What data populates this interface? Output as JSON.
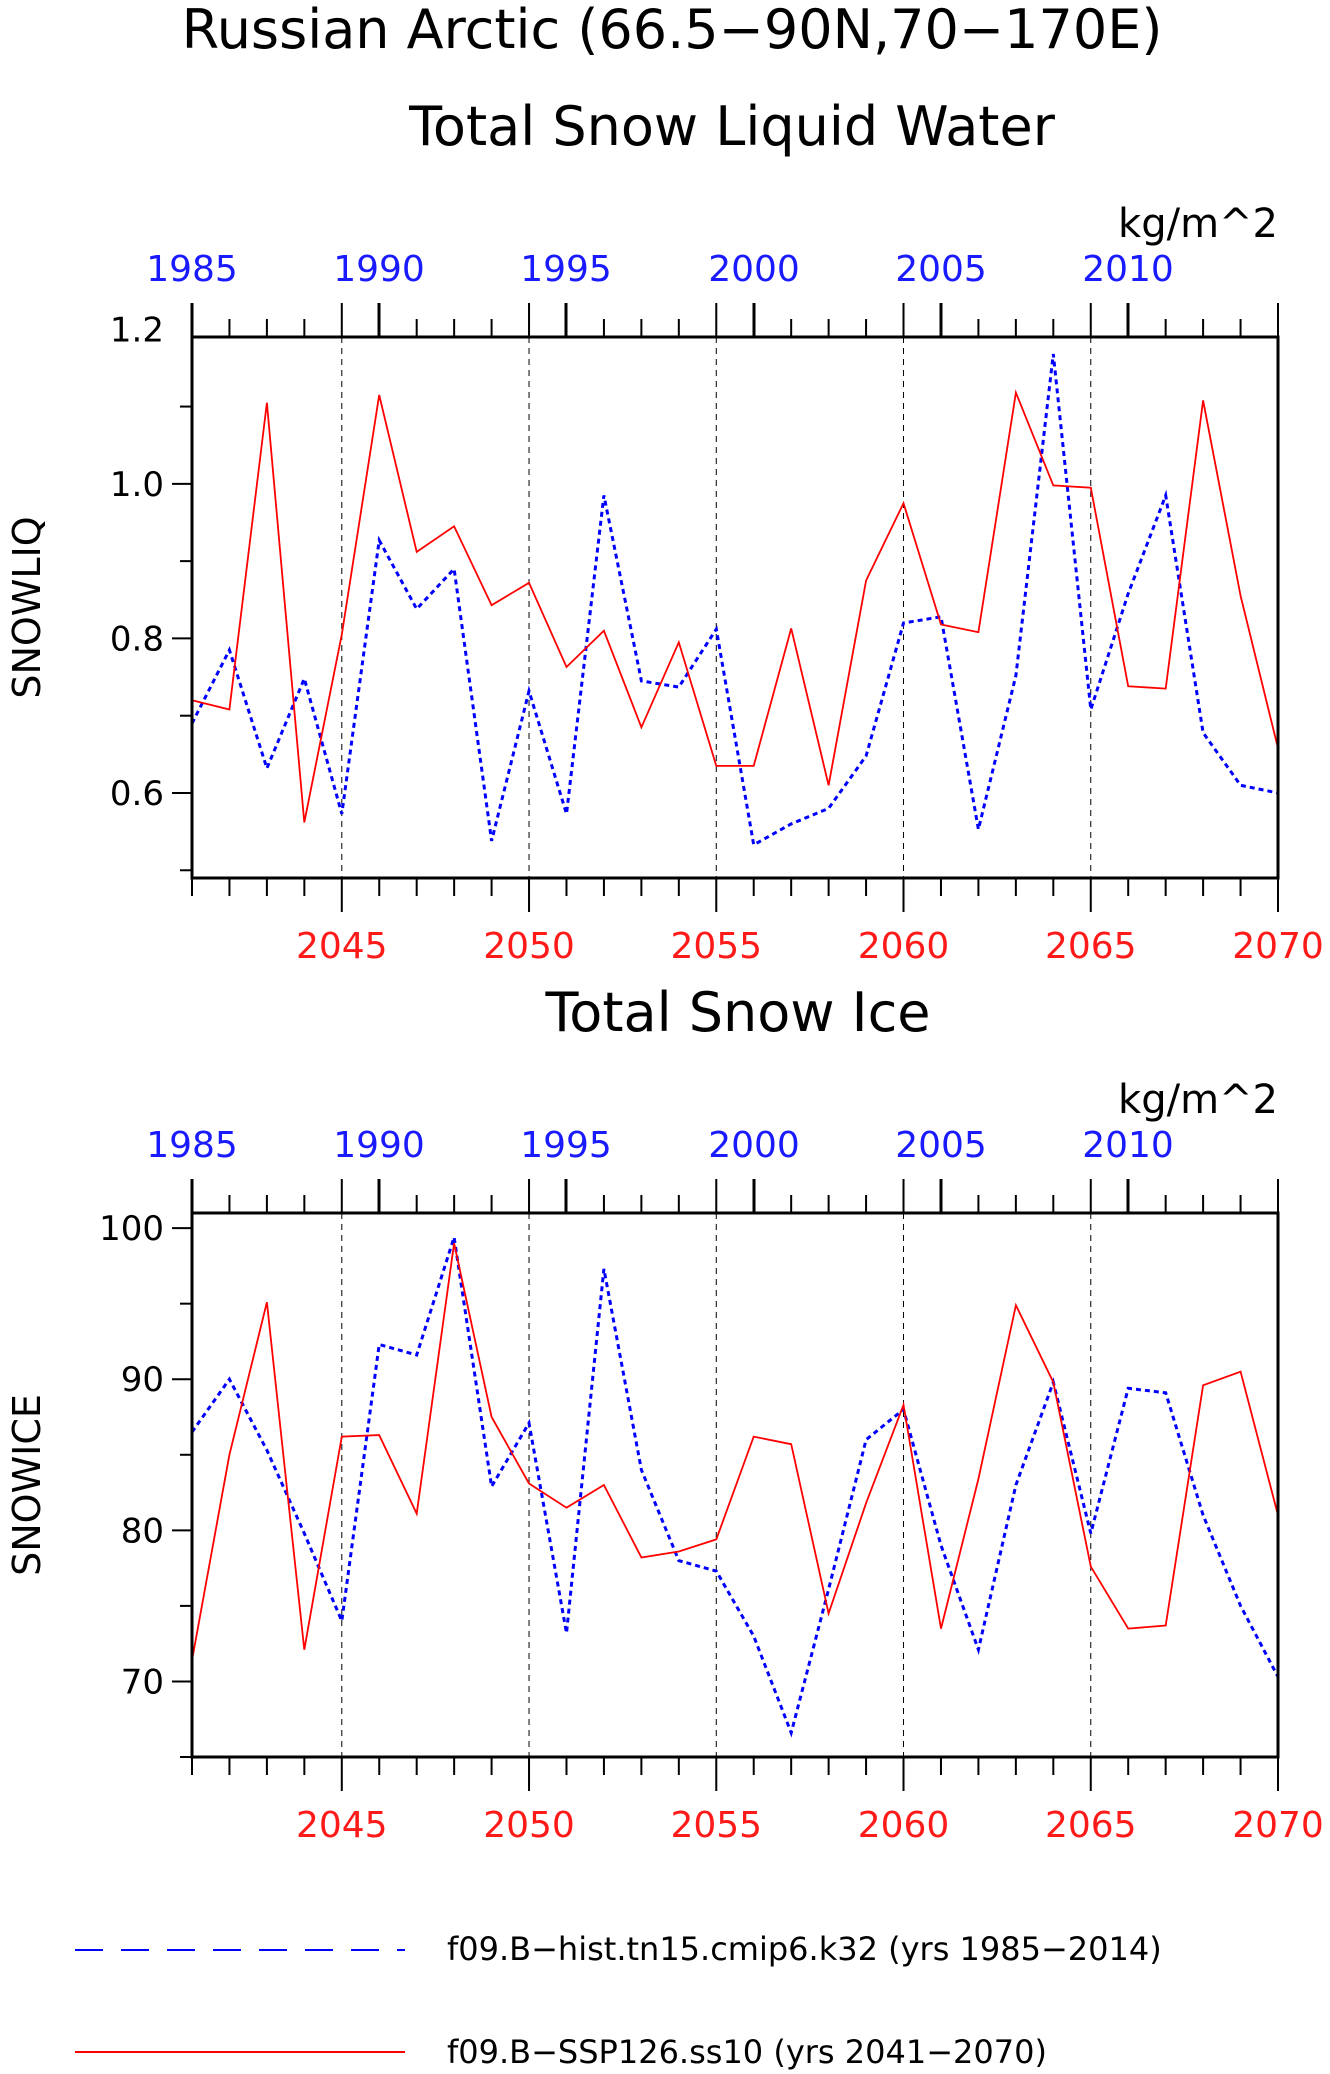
{
  "titles": {
    "main_line1": "Russian Arctic (66.5−90N,70−170E)",
    "main_line2": "Total Snow Liquid Water",
    "panel2": "Total Snow Ice"
  },
  "legend": {
    "hist_label": "f09.B−hist.tn15.cmip6.k32 (yrs 1985−2014)",
    "ssp_label": "f09.B−SSP126.ss10 (yrs 2041−2070)"
  },
  "colors": {
    "hist": "#0000ff",
    "ssp": "#ff0000",
    "top_axis": "#1a1aff",
    "bottom_axis": "#ff1a1a"
  },
  "chart_data": [
    {
      "type": "line",
      "units": "kg/m^2",
      "ylabel": "SNOWLIQ",
      "ylim": [
        0.49,
        1.19
      ],
      "yticks": [
        0.6,
        0.8,
        1.0,
        1.2
      ],
      "ytick_labels": [
        "0.6",
        "0.8",
        "1.0",
        "1.2"
      ],
      "x_bottom_ticks": [
        2045,
        2050,
        2055,
        2060,
        2065,
        2070
      ],
      "x_top_tick_labels": [
        "1985",
        "1990",
        "1995",
        "2000",
        "2005",
        "2010"
      ],
      "x_bottom_range": [
        2041,
        2070
      ],
      "grid": "dashed vertical lines at 2045, 2050, 2055, 2060, 2065",
      "series": [
        {
          "name": "f09.B−hist.tn15.cmip6.k32 (yrs 1985−2014)",
          "style": "dashed",
          "years": [
            1985,
            1986,
            1987,
            1988,
            1989,
            1990,
            1991,
            1992,
            1993,
            1994,
            1995,
            1996,
            1997,
            1998,
            1999,
            2000,
            2001,
            2002,
            2003,
            2004,
            2005,
            2006,
            2007,
            2008,
            2009,
            2010,
            2011,
            2012,
            2013,
            2014
          ],
          "values": [
            0.69,
            0.785,
            0.632,
            0.748,
            0.573,
            0.927,
            0.838,
            0.89,
            0.538,
            0.732,
            0.573,
            0.985,
            0.745,
            0.737,
            0.812,
            0.533,
            0.56,
            0.58,
            0.648,
            0.82,
            0.828,
            0.553,
            0.752,
            1.168,
            0.708,
            0.858,
            0.985,
            0.678,
            0.61,
            0.6
          ]
        },
        {
          "name": "f09.B−SSP126.ss10 (yrs 2041−2070)",
          "style": "solid",
          "years": [
            2041,
            2042,
            2043,
            2044,
            2045,
            2046,
            2047,
            2048,
            2049,
            2050,
            2051,
            2052,
            2053,
            2054,
            2055,
            2056,
            2057,
            2058,
            2059,
            2060,
            2061,
            2062,
            2063,
            2064,
            2065,
            2066,
            2067,
            2068,
            2069,
            2070
          ],
          "values": [
            0.72,
            0.708,
            1.105,
            0.562,
            0.805,
            1.115,
            0.912,
            0.945,
            0.843,
            0.872,
            0.763,
            0.81,
            0.685,
            0.795,
            0.635,
            0.635,
            0.813,
            0.61,
            0.875,
            0.975,
            0.818,
            0.808,
            1.118,
            0.998,
            0.995,
            0.738,
            0.735,
            1.108,
            0.855,
            0.658
          ]
        }
      ]
    },
    {
      "type": "line",
      "units": "kg/m^2",
      "ylabel": "SNOWICE",
      "ylim": [
        65,
        101
      ],
      "yticks": [
        70,
        80,
        90,
        100
      ],
      "ytick_labels": [
        "70",
        "80",
        "90",
        "100"
      ],
      "x_bottom_ticks": [
        2045,
        2050,
        2055,
        2060,
        2065,
        2070
      ],
      "x_top_tick_labels": [
        "1985",
        "1990",
        "1995",
        "2000",
        "2005",
        "2010"
      ],
      "x_bottom_range": [
        2041,
        2070
      ],
      "grid": "dashed vertical lines at 2045, 2050, 2055, 2060, 2065",
      "series": [
        {
          "name": "f09.B−hist.tn15.cmip6.k32 (yrs 1985−2014)",
          "style": "dashed",
          "years": [
            1985,
            1986,
            1987,
            1988,
            1989,
            1990,
            1991,
            1992,
            1993,
            1994,
            1995,
            1996,
            1997,
            1998,
            1999,
            2000,
            2001,
            2002,
            2003,
            2004,
            2005,
            2006,
            2007,
            2008,
            2009,
            2010,
            2011,
            2012,
            2013,
            2014
          ],
          "values": [
            86.5,
            90.0,
            85.3,
            79.8,
            74.0,
            92.3,
            91.6,
            99.4,
            82.9,
            87.1,
            73.2,
            97.3,
            84.0,
            78.0,
            77.3,
            73.0,
            66.6,
            76.1,
            86.0,
            88.0,
            79.0,
            72.1,
            83.0,
            89.8,
            79.8,
            89.4,
            89.1,
            81.0,
            75.0,
            70.3
          ]
        },
        {
          "name": "f09.B−SSP126.ss10 (yrs 2041−2070)",
          "style": "solid",
          "years": [
            2041,
            2042,
            2043,
            2044,
            2045,
            2046,
            2047,
            2048,
            2049,
            2050,
            2051,
            2052,
            2053,
            2054,
            2055,
            2056,
            2057,
            2058,
            2059,
            2060,
            2061,
            2062,
            2063,
            2064,
            2065,
            2066,
            2067,
            2068,
            2069,
            2070
          ],
          "values": [
            71.4,
            85.0,
            95.1,
            72.1,
            86.2,
            86.3,
            81.1,
            99.0,
            87.5,
            83.1,
            81.5,
            83.0,
            78.2,
            78.6,
            79.4,
            86.2,
            85.7,
            74.5,
            81.8,
            88.3,
            73.5,
            83.4,
            94.9,
            89.8,
            77.6,
            73.5,
            73.7,
            89.6,
            90.5,
            81.0
          ]
        }
      ]
    }
  ]
}
